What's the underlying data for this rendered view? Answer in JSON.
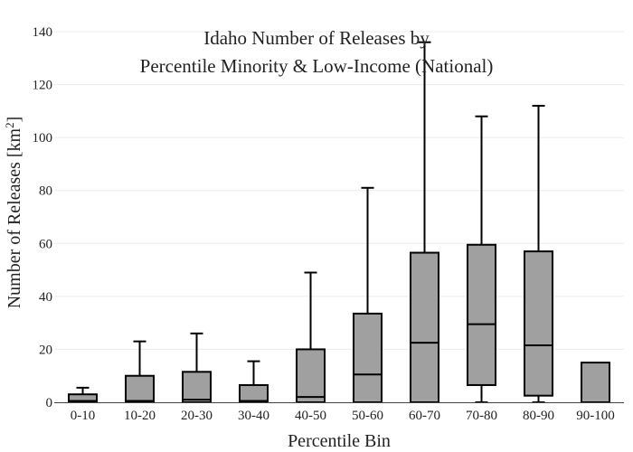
{
  "chart_data": {
    "type": "box",
    "title": [
      "Idaho Number of Releases by",
      "Percentile Minority & Low-Income (National)"
    ],
    "xlabel": "Percentile Bin",
    "ylabel": "Number of Releases  [km",
    "ylabel_superscript": "2",
    "ylabel_suffix": "]",
    "ylim": [
      0,
      140
    ],
    "yticks": [
      0,
      20,
      40,
      60,
      80,
      100,
      120,
      140
    ],
    "grid": true,
    "box_color": "#a0a0a0",
    "line_color": "#000000",
    "categories": [
      "0-10",
      "10-20",
      "20-30",
      "30-40",
      "40-50",
      "50-60",
      "60-70",
      "70-80",
      "80-90",
      "90-100"
    ],
    "boxes": [
      {
        "low": 0,
        "q1": 0,
        "median": 0.5,
        "q3": 3,
        "high": 5.5
      },
      {
        "low": 0,
        "q1": 0,
        "median": 0.5,
        "q3": 10,
        "high": 23
      },
      {
        "low": 0,
        "q1": 0,
        "median": 1,
        "q3": 11.5,
        "high": 26
      },
      {
        "low": 0,
        "q1": 0,
        "median": 0.5,
        "q3": 6.5,
        "high": 15.5
      },
      {
        "low": 0,
        "q1": 0,
        "median": 2,
        "q3": 20,
        "high": 49
      },
      {
        "low": 0,
        "q1": 0,
        "median": 10.5,
        "q3": 33.5,
        "high": 81
      },
      {
        "low": 0,
        "q1": 0,
        "median": 22.5,
        "q3": 56.5,
        "high": 136
      },
      {
        "low": 0,
        "q1": 6.5,
        "median": 29.5,
        "q3": 59.5,
        "high": 108
      },
      {
        "low": 0,
        "q1": 2.5,
        "median": 21.5,
        "q3": 57,
        "high": 112
      },
      {
        "low": 0,
        "q1": 0,
        "median": 0,
        "q3": 15,
        "high": 15
      }
    ]
  }
}
